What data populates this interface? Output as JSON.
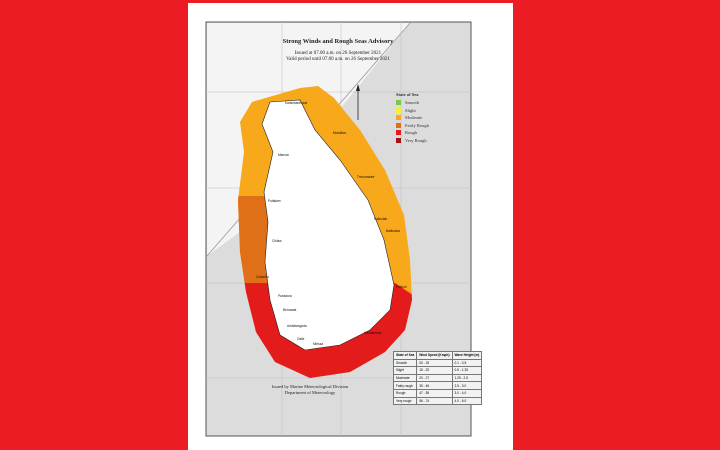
{
  "map": {
    "title": "Strong Winds and Rough Seas Advisory",
    "issued": "Issued at 07.00 a.m. on 26 September 2021",
    "valid": "Valid period until 07.00 a.m. on 26 September 2021",
    "footer_line1": "Issued by Marine Meteorological Division",
    "footer_line2": "Department of Meteorology",
    "north_arrow": "north-arrow-icon",
    "legend": {
      "title": "State of Sea",
      "items": [
        {
          "label": "Smooth",
          "color": "#7ec850"
        },
        {
          "label": "Slight",
          "color": "#f4f22a"
        },
        {
          "label": "Moderate",
          "color": "#f7a81b"
        },
        {
          "label": "Fairly Rough",
          "color": "#e07018"
        },
        {
          "label": "Rough",
          "color": "#e41b1b"
        },
        {
          "label": "Very Rough",
          "color": "#a50f15"
        }
      ]
    },
    "zones": {
      "north_east": "Moderate",
      "west": "Fairly Rough",
      "south": "Rough"
    },
    "table": {
      "headers": [
        "State of Sea",
        "Wind Speed (Kmph)",
        "Wave Height (m)"
      ],
      "rows": [
        [
          "Smooth",
          "00 - 15",
          "0.1 - 0.5"
        ],
        [
          "Slight",
          "15 - 20",
          "0.5 - 1.25"
        ],
        [
          "Moderate",
          "20 - 27",
          "1.25 - 2.5"
        ],
        [
          "Fairly rough",
          "35 - 46",
          "2.5 - 3.0"
        ],
        [
          "Rough",
          "47 - 55",
          "3.0 - 4.0"
        ],
        [
          "Very rough",
          "56 - 74",
          "4.0 - 6.0"
        ]
      ]
    },
    "places": [
      "Kankesanthurai",
      "Mullaitivu",
      "Mannar",
      "Trincomalee",
      "Puttalam",
      "Kalkudah",
      "Batticaloa",
      "Chilaw",
      "Colombo",
      "Panadura",
      "Beruwala",
      "Ambalangoda",
      "Galle",
      "Mirissa",
      "Hambantota",
      "Pottuvil"
    ]
  }
}
